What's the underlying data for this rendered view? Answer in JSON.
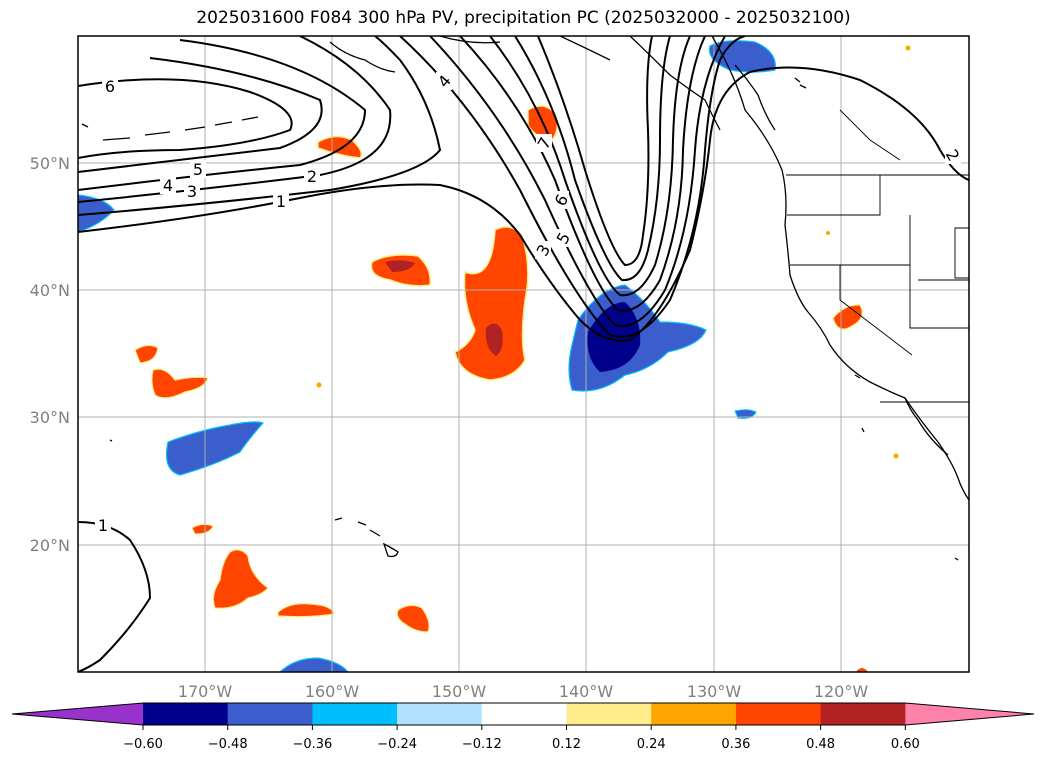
{
  "title": "2025031600 F084 300 hPa PV, precipitation PC (2025032000 - 2025032100)",
  "map": {
    "lat_labels": [
      "50°N",
      "40°N",
      "30°N",
      "20°N"
    ],
    "lon_labels": [
      "170°W",
      "160°W",
      "150°W",
      "140°W",
      "130°W",
      "120°W"
    ],
    "contour_labels": [
      "6",
      "5",
      "4",
      "3",
      "2",
      "1",
      "4",
      "7",
      "6",
      "5",
      "3",
      "2",
      "1"
    ]
  },
  "colorbar": {
    "ticks": [
      "−0.60",
      "−0.48",
      "−0.36",
      "−0.24",
      "−0.12",
      "0.12",
      "0.24",
      "0.36",
      "0.48",
      "0.60"
    ],
    "colors": [
      "#9932cc",
      "#00008b",
      "#3a5fcd",
      "#00bfff",
      "#b0e2ff",
      "#ffffff",
      "#ffec8b",
      "#ffa500",
      "#ff4500",
      "#b22222",
      "#ff82ab"
    ]
  }
}
